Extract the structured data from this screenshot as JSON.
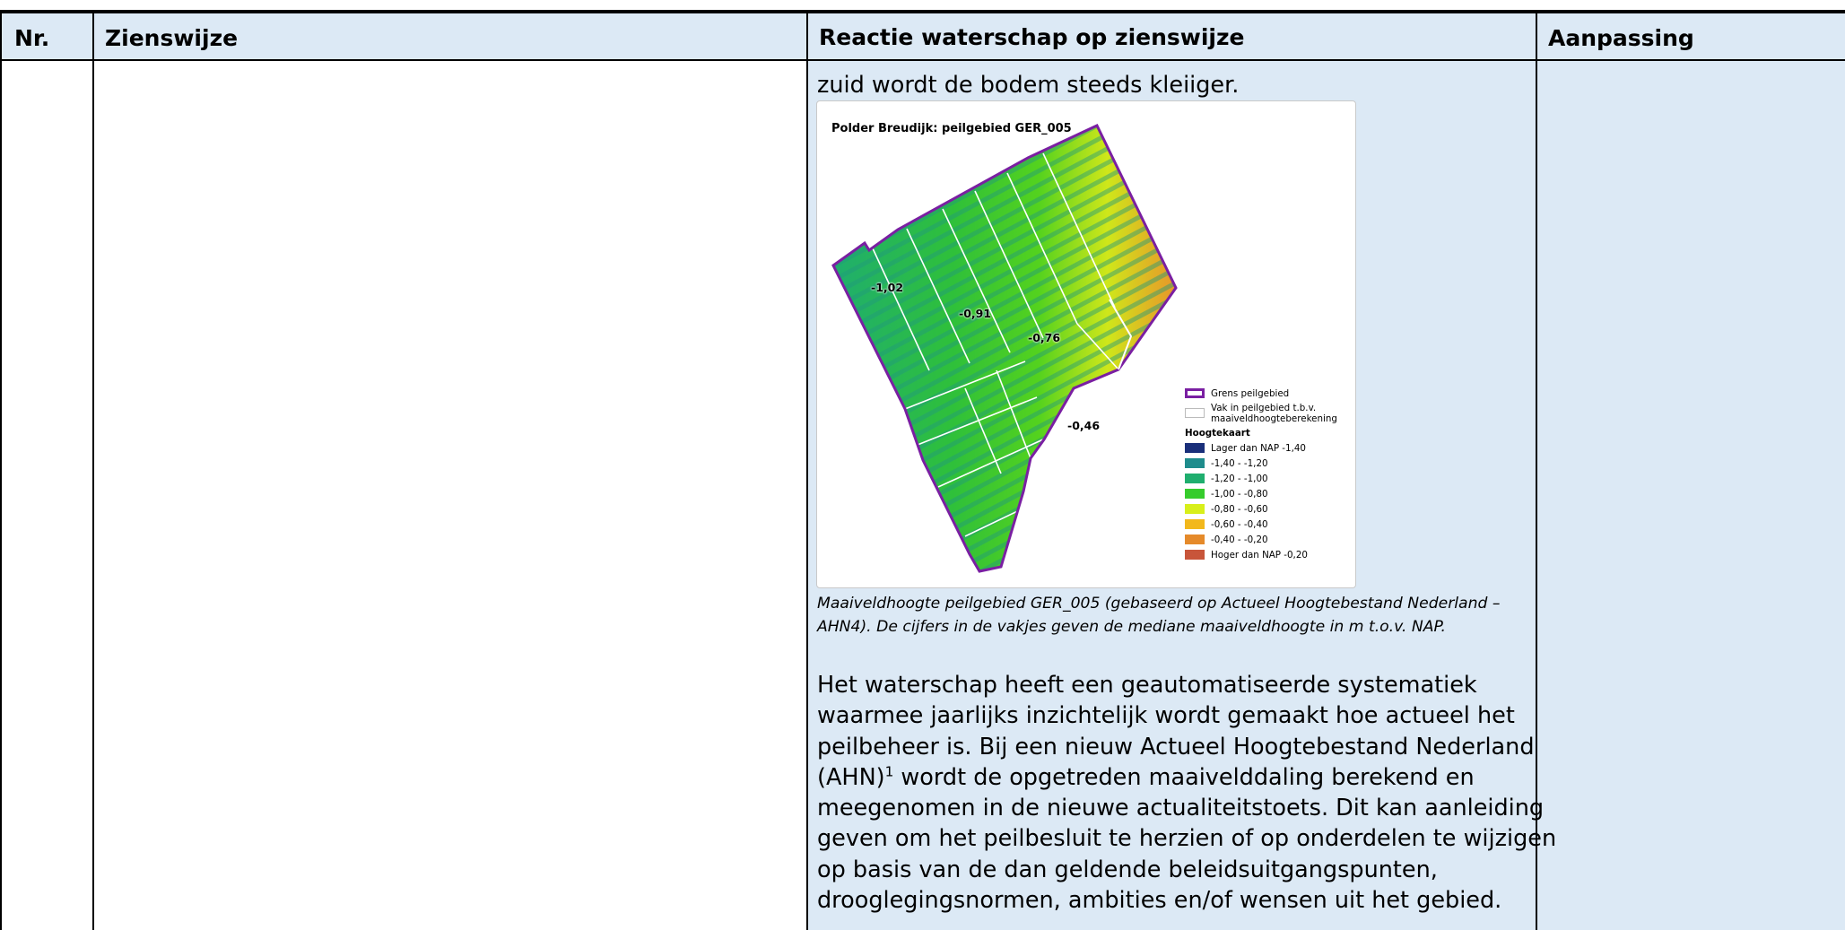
{
  "table": {
    "headers": {
      "nr": "Nr.",
      "zienswijze": "Zienswijze",
      "reactie": "Reactie waterschap op zienswijze",
      "aanpassing": "Aanpassing"
    },
    "header_background": "#dce9f5",
    "reactie_column_background": "#dce9f5"
  },
  "reactie": {
    "lead_line": "zuid wordt de bodem steeds kleiiger.",
    "figure": {
      "title": "Polder Breudijk: peilgebied GER_005",
      "field_values": [
        "-1,02",
        "-0,91",
        "-0,76",
        "-0,46"
      ],
      "legend": {
        "boundary_label": "Grens peilgebied",
        "section_label_line1": "Vak in peilgebied t.b.v.",
        "section_label_line2": "maaiveldhoogteberekening",
        "heading": "Hoogtekaart",
        "classes": [
          {
            "label": "Lager dan NAP -1,40",
            "color": "#1a2f7a"
          },
          {
            "label": "-1,40 - -1,20",
            "color": "#1f8c8c"
          },
          {
            "label": "-1,20 - -1,00",
            "color": "#1fae6e"
          },
          {
            "label": "-1,00 - -0,80",
            "color": "#36cc2c"
          },
          {
            "label": "-0,80 - -0,60",
            "color": "#d8ef1a"
          },
          {
            "label": "-0,60 - -0,40",
            "color": "#f2b81c"
          },
          {
            "label": "-0,40 - -0,20",
            "color": "#e58a2a"
          },
          {
            "label": "Hoger dan NAP -0,20",
            "color": "#c8553a"
          }
        ],
        "boundary_color": "#7a1fa2"
      }
    },
    "caption_line1": "Maaiveldhoogte peilgebied GER_005 (gebaseerd op Actueel Hoogtebestand Nederland –",
    "caption_line2": "AHN4). De cijfers in de vakjes geven de mediane maaiveldhoogte in m t.o.v. NAP.",
    "paragraph": {
      "line1": "Het waterschap heeft een geautomatiseerde systematiek",
      "line2": "waarmee jaarlijks inzichtelijk wordt gemaakt hoe actueel het",
      "line3": "peilbeheer is. Bij een nieuw Actueel Hoogtebestand Nederland",
      "line4_pre": "(AHN)",
      "line4_sup": "1",
      "line4_post": " wordt de opgetreden maaivelddaling berekend en",
      "line5": "meegenomen in de nieuwe actualiteitstoets. Dit kan aanleiding",
      "line6": "geven om het peilbesluit te herzien of op onderdelen te wijzigen",
      "line7": "op basis van de dan geldende beleidsuitgangspunten,",
      "line8": "drooglegingsnormen, ambities en/of wensen uit het gebied."
    }
  }
}
